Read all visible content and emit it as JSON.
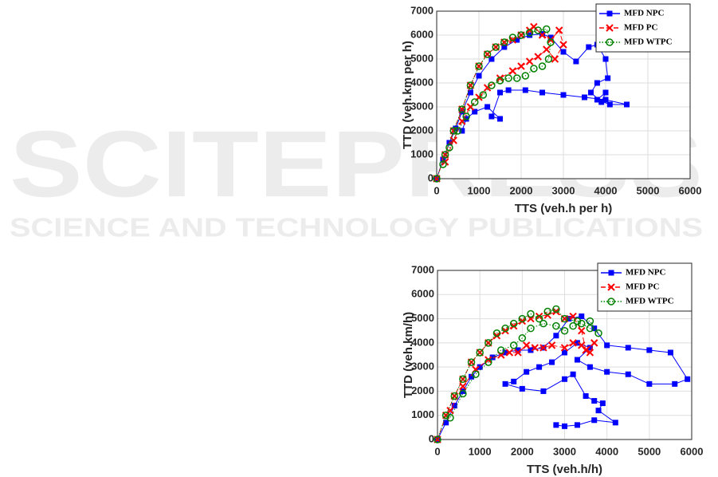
{
  "watermark": {
    "title": "SCITEPRESS",
    "subtitle": "SCIENCE AND TECHNOLOGY PUBLICATIONS"
  },
  "chart_data": [
    {
      "type": "line",
      "xlabel": "TTS (veh.h per h)",
      "ylabel": "TTD (veh.km per h)",
      "xlim": [
        0,
        6000
      ],
      "ylim": [
        0,
        7000
      ],
      "xticks": [
        0,
        1000,
        2000,
        3000,
        4000,
        5000,
        6000
      ],
      "yticks": [
        0,
        1000,
        2000,
        3000,
        4000,
        5000,
        6000,
        7000
      ],
      "grid": true,
      "legend": "upper right",
      "series": [
        {
          "name": "MFD NPC",
          "color": "#0000ff",
          "marker": "square",
          "x": [
            0,
            150,
            300,
            450,
            600,
            800,
            1000,
            1300,
            1600,
            1900,
            2200,
            2500,
            2700,
            3000,
            3300,
            3600,
            3800,
            4000,
            4050,
            3800,
            3650,
            3900,
            4000,
            3800,
            4100,
            4500,
            4000,
            3500,
            3000,
            2500,
            2100,
            1700,
            1500,
            1300,
            1500,
            1200,
            900,
            700,
            600
          ],
          "values": [
            0,
            800,
            1500,
            2100,
            2800,
            3600,
            4300,
            5000,
            5500,
            5800,
            6000,
            6050,
            5900,
            5300,
            4900,
            5500,
            5600,
            5000,
            4200,
            4000,
            3600,
            3200,
            3600,
            3300,
            3100,
            3100,
            3300,
            3400,
            3500,
            3600,
            3700,
            3700,
            3600,
            2600,
            2500,
            3000,
            2800,
            2500,
            2000
          ]
        },
        {
          "name": "MFD PC",
          "color": "#ff0000",
          "marker": "x",
          "x": [
            0,
            200,
            400,
            600,
            800,
            1000,
            1200,
            1400,
            1600,
            1800,
            2000,
            2200,
            2300,
            2500,
            2700,
            2900,
            3000,
            2800,
            2600,
            2400,
            2200,
            2000,
            1800,
            1500,
            1200,
            1000,
            800,
            600,
            400,
            200
          ],
          "values": [
            0,
            1000,
            2000,
            2900,
            3900,
            4700,
            5200,
            5500,
            5700,
            5800,
            6000,
            6200,
            6350,
            6000,
            5800,
            6200,
            5600,
            5000,
            5400,
            5100,
            4900,
            4700,
            4500,
            4200,
            3800,
            3400,
            3000,
            2400,
            1600,
            700
          ]
        },
        {
          "name": "MFD WTPC",
          "color": "#008000",
          "marker": "circle",
          "x": [
            0,
            200,
            400,
            600,
            800,
            1000,
            1200,
            1400,
            1600,
            1800,
            2000,
            2200,
            2400,
            2600,
            2700,
            2650,
            2500,
            2300,
            2100,
            1900,
            1700,
            1500,
            1300,
            1100,
            900,
            700,
            500,
            300,
            150
          ],
          "values": [
            0,
            1000,
            2000,
            2900,
            3900,
            4700,
            5200,
            5500,
            5700,
            5900,
            6000,
            6100,
            6200,
            6250,
            5700,
            5000,
            4700,
            4600,
            4300,
            4200,
            4200,
            4100,
            3900,
            3500,
            3200,
            2600,
            2000,
            1300,
            600
          ]
        }
      ]
    },
    {
      "type": "line",
      "xlabel": "TTS (veh.h/h)",
      "ylabel": "TTD (veh.km/h)",
      "xlim": [
        0,
        6000
      ],
      "ylim": [
        0,
        7000
      ],
      "xticks": [
        0,
        1000,
        2000,
        3000,
        4000,
        5000,
        6000
      ],
      "yticks": [
        0,
        1000,
        2000,
        3000,
        4000,
        5000,
        6000,
        7000
      ],
      "grid": true,
      "legend": "upper right",
      "series": [
        {
          "name": "MFD NPC",
          "color": "#0000ff",
          "marker": "square",
          "x": [
            0,
            200,
            400,
            600,
            800,
            1000,
            1300,
            1600,
            1900,
            2200,
            2500,
            2800,
            3100,
            3400,
            3700,
            4000,
            4500,
            5000,
            5500,
            5900,
            5600,
            5000,
            4500,
            4000,
            3600,
            3300,
            3600,
            3300,
            3000,
            2700,
            2400,
            2100,
            1800,
            1600,
            2000,
            2500,
            3000,
            3200,
            3500,
            3700,
            3900,
            3800,
            4200,
            3700,
            3300,
            3000,
            2800
          ],
          "values": [
            0,
            700,
            1400,
            2000,
            2600,
            3000,
            3400,
            3600,
            3700,
            3700,
            3800,
            4300,
            5000,
            5100,
            4600,
            3900,
            3800,
            3700,
            3600,
            2500,
            2300,
            2300,
            2700,
            2800,
            3000,
            3300,
            3800,
            4000,
            3600,
            3200,
            3000,
            2800,
            2400,
            2300,
            2100,
            2000,
            2500,
            2700,
            1800,
            1600,
            1500,
            1200,
            700,
            800,
            600,
            550,
            600
          ]
        },
        {
          "name": "MFD PC",
          "color": "#ff0000",
          "marker": "x",
          "x": [
            0,
            200,
            400,
            600,
            800,
            1000,
            1200,
            1400,
            1600,
            1800,
            2000,
            2200,
            2400,
            2600,
            2800,
            3000,
            3200,
            3400,
            3500,
            3700,
            3600,
            3400,
            3200,
            3000,
            2700,
            2500,
            2300,
            2100,
            1900,
            1700,
            1500,
            1200,
            900,
            600,
            300
          ],
          "values": [
            0,
            1000,
            1800,
            2500,
            3200,
            3600,
            4000,
            4300,
            4500,
            4700,
            4900,
            5000,
            5100,
            5150,
            5300,
            5000,
            5100,
            4500,
            3700,
            4000,
            3600,
            3900,
            4000,
            3800,
            3900,
            3800,
            3800,
            3900,
            3600,
            3600,
            3500,
            3300,
            2900,
            2200,
            1200
          ]
        },
        {
          "name": "MFD WTPC",
          "color": "#008000",
          "marker": "circle",
          "x": [
            0,
            200,
            400,
            600,
            800,
            1000,
            1200,
            1400,
            1600,
            1800,
            2000,
            2200,
            2400,
            2600,
            2800,
            3000,
            3300,
            3600,
            3800,
            3600,
            3400,
            3200,
            3000,
            2800,
            2500,
            2200,
            2000,
            1800,
            1500,
            1200,
            900,
            600,
            300
          ],
          "values": [
            0,
            1000,
            1800,
            2500,
            3200,
            3600,
            4000,
            4400,
            4600,
            4800,
            5000,
            5200,
            5000,
            5300,
            5400,
            5000,
            4900,
            4900,
            4400,
            4600,
            4800,
            4700,
            4500,
            4700,
            4800,
            4600,
            4200,
            3900,
            3700,
            3200,
            2700,
            1900,
            900
          ]
        }
      ]
    }
  ]
}
